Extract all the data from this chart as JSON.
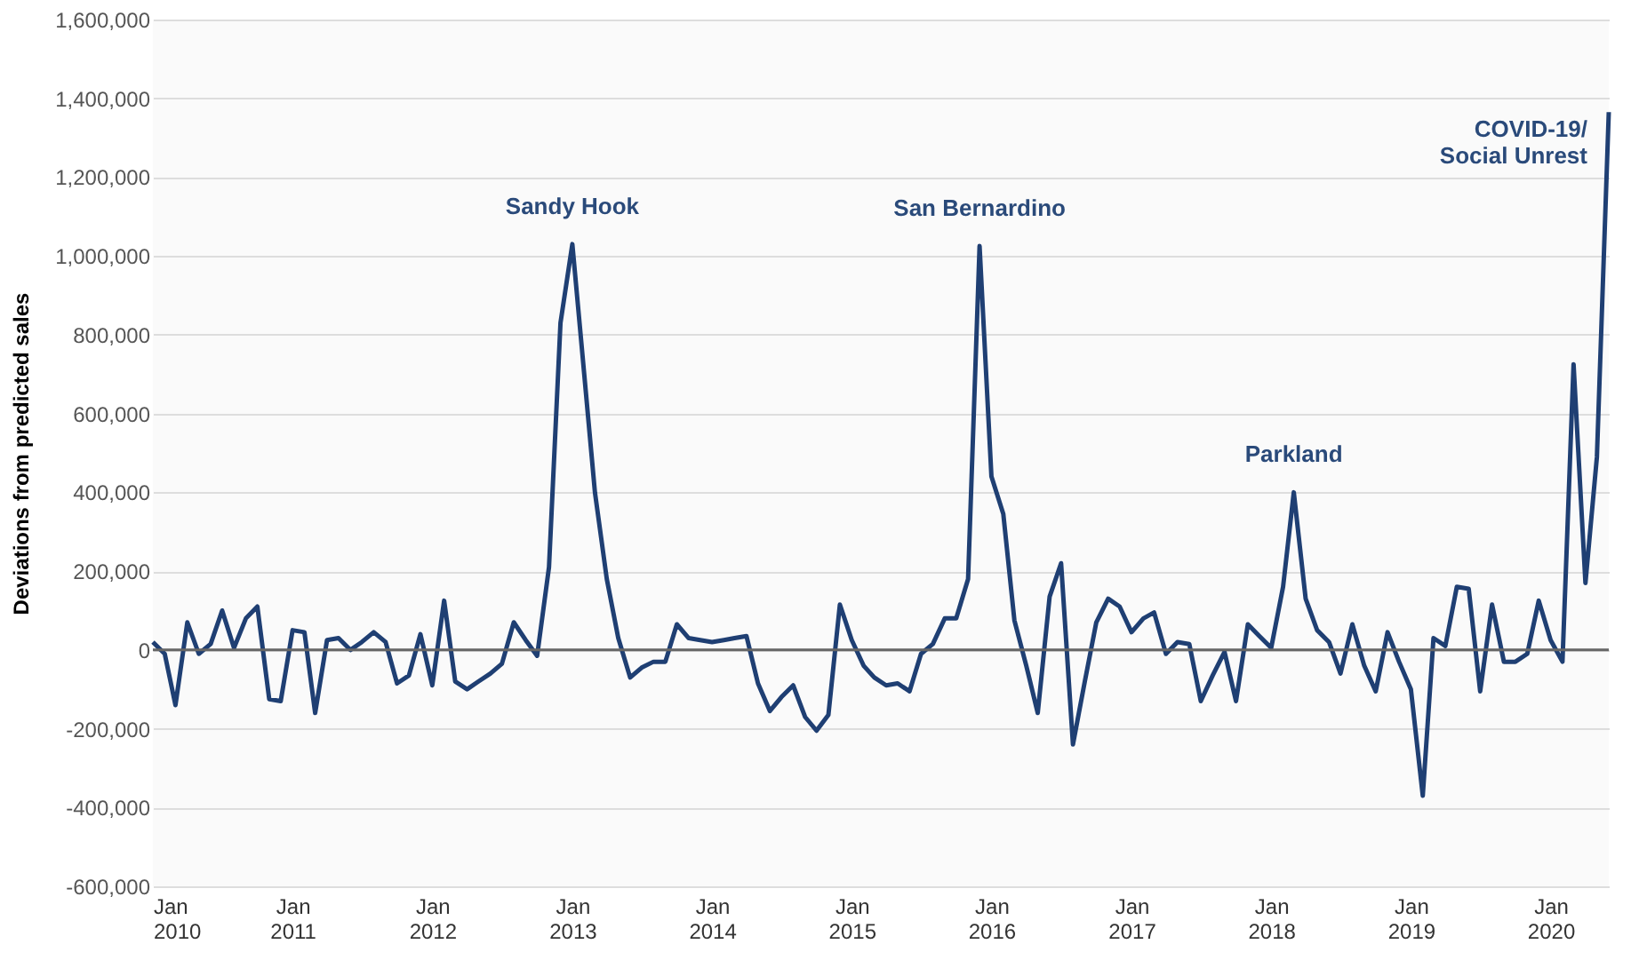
{
  "chart_data": {
    "type": "line",
    "ylabel": "Deviations from predicted sales",
    "x": [
      "2010-01",
      "2010-02",
      "2010-03",
      "2010-04",
      "2010-05",
      "2010-06",
      "2010-07",
      "2010-08",
      "2010-09",
      "2010-10",
      "2010-11",
      "2010-12",
      "2011-01",
      "2011-02",
      "2011-03",
      "2011-04",
      "2011-05",
      "2011-06",
      "2011-07",
      "2011-08",
      "2011-09",
      "2011-10",
      "2011-11",
      "2011-12",
      "2012-01",
      "2012-02",
      "2012-03",
      "2012-04",
      "2012-05",
      "2012-06",
      "2012-07",
      "2012-08",
      "2012-09",
      "2012-10",
      "2012-11",
      "2012-12",
      "2013-01",
      "2013-02",
      "2013-03",
      "2013-04",
      "2013-05",
      "2013-06",
      "2013-07",
      "2013-08",
      "2013-09",
      "2013-10",
      "2013-11",
      "2013-12",
      "2014-01",
      "2014-02",
      "2014-03",
      "2014-04",
      "2014-05",
      "2014-06",
      "2014-07",
      "2014-08",
      "2014-09",
      "2014-10",
      "2014-11",
      "2014-12",
      "2015-01",
      "2015-02",
      "2015-03",
      "2015-04",
      "2015-05",
      "2015-06",
      "2015-07",
      "2015-08",
      "2015-09",
      "2015-10",
      "2015-11",
      "2015-12",
      "2016-01",
      "2016-02",
      "2016-03",
      "2016-04",
      "2016-05",
      "2016-06",
      "2016-07",
      "2016-08",
      "2016-09",
      "2016-10",
      "2016-11",
      "2016-12",
      "2017-01",
      "2017-02",
      "2017-03",
      "2017-04",
      "2017-05",
      "2017-06",
      "2017-07",
      "2017-08",
      "2017-09",
      "2017-10",
      "2017-11",
      "2017-12",
      "2018-01",
      "2018-02",
      "2018-03",
      "2018-04",
      "2018-05",
      "2018-06",
      "2018-07",
      "2018-08",
      "2018-09",
      "2018-10",
      "2018-11",
      "2018-12",
      "2019-01",
      "2019-02",
      "2019-03",
      "2019-04",
      "2019-05",
      "2019-06",
      "2019-07",
      "2019-08",
      "2019-09",
      "2019-10",
      "2019-11",
      "2019-12",
      "2020-01",
      "2020-02",
      "2020-03",
      "2020-04",
      "2020-05",
      "2020-06"
    ],
    "series": [
      {
        "color": "#1f3f73",
        "values": [
          20000,
          -10000,
          -140000,
          70000,
          -10000,
          15000,
          100000,
          5000,
          80000,
          110000,
          -125000,
          -130000,
          50000,
          45000,
          -160000,
          25000,
          30000,
          0,
          20000,
          45000,
          20000,
          -85000,
          -65000,
          40000,
          -90000,
          125000,
          -80000,
          -100000,
          -80000,
          -60000,
          -35000,
          70000,
          25000,
          -15000,
          210000,
          830000,
          1030000,
          700000,
          400000,
          180000,
          30000,
          -70000,
          -45000,
          -30000,
          -30000,
          65000,
          30000,
          25000,
          20000,
          25000,
          30000,
          35000,
          -85000,
          -155000,
          -120000,
          -90000,
          -170000,
          -205000,
          -165000,
          115000,
          25000,
          -40000,
          -70000,
          -90000,
          -85000,
          -105000,
          -10000,
          15000,
          80000,
          80000,
          180000,
          1025000,
          440000,
          345000,
          75000,
          -40000,
          -160000,
          135000,
          220000,
          -240000,
          -80000,
          70000,
          130000,
          110000,
          45000,
          80000,
          95000,
          -10000,
          20000,
          15000,
          -130000,
          -65000,
          -5000,
          -130000,
          65000,
          35000,
          5000,
          160000,
          400000,
          130000,
          50000,
          20000,
          -60000,
          65000,
          -40000,
          -105000,
          45000,
          -30000,
          -100000,
          -370000,
          30000,
          10000,
          160000,
          155000,
          -105000,
          115000,
          -30000,
          -30000,
          -10000,
          125000,
          25000,
          -30000,
          725000,
          170000,
          490000,
          1365000
        ]
      }
    ],
    "xlim": [
      "2010-01",
      "2020-06"
    ],
    "xticks": [
      {
        "value": "2010-01",
        "label": "Jan 2010"
      },
      {
        "value": "2011-01",
        "label": "Jan 2011"
      },
      {
        "value": "2012-01",
        "label": "Jan 2012"
      },
      {
        "value": "2013-01",
        "label": "Jan 2013"
      },
      {
        "value": "2014-01",
        "label": "Jan 2014"
      },
      {
        "value": "2015-01",
        "label": "Jan 2015"
      },
      {
        "value": "2016-01",
        "label": "Jan 2016"
      },
      {
        "value": "2017-01",
        "label": "Jan 2017"
      },
      {
        "value": "2018-01",
        "label": "Jan 2018"
      },
      {
        "value": "2019-01",
        "label": "Jan 2019"
      },
      {
        "value": "2020-01",
        "label": "Jan 2020"
      }
    ],
    "ylim": [
      -600000,
      1600000
    ],
    "yticks": [
      {
        "value": -600000,
        "label": "-600,000"
      },
      {
        "value": -400000,
        "label": "-400,000"
      },
      {
        "value": -200000,
        "label": "-200,000"
      },
      0,
      {
        "value": 200000,
        "label": "200,000"
      },
      {
        "value": 400000,
        "label": "400,000"
      },
      {
        "value": 600000,
        "label": "600,000"
      },
      {
        "value": 800000,
        "label": "800,000"
      },
      {
        "value": 1000000,
        "label": "1,000,000"
      },
      {
        "value": 1200000,
        "label": "1,200,000"
      },
      {
        "value": 1400000,
        "label": "1,400,000"
      },
      {
        "value": 1600000,
        "label": "1,600,000"
      }
    ],
    "grid": "y",
    "ref_lines": [
      {
        "axis": "y",
        "value": 0,
        "color": "#666666"
      }
    ],
    "annotations": [
      {
        "text": "Sandy Hook",
        "x": "2013-01",
        "y": 1030000
      },
      {
        "text": "San Bernardino",
        "x": "2015-12",
        "y": 1025000
      },
      {
        "text": "Parkland",
        "x": "2018-03",
        "y": 400000
      },
      {
        "text": "COVID-19/\nSocial Unrest",
        "x": "2020-06",
        "y": 1365000
      }
    ],
    "marker": "none",
    "line_style": "solid"
  }
}
